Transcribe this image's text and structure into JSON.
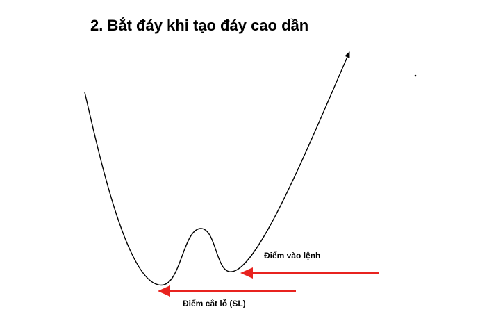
{
  "title": "2. Bắt đáy khi tạo đáy cao dần",
  "labels": {
    "entry": "Điểm vào lệnh",
    "stop_loss": "Điểm cắt lỗ (SL)"
  },
  "colors": {
    "curve": "#000000",
    "arrow": "#e8231f",
    "text": "#000000"
  }
}
